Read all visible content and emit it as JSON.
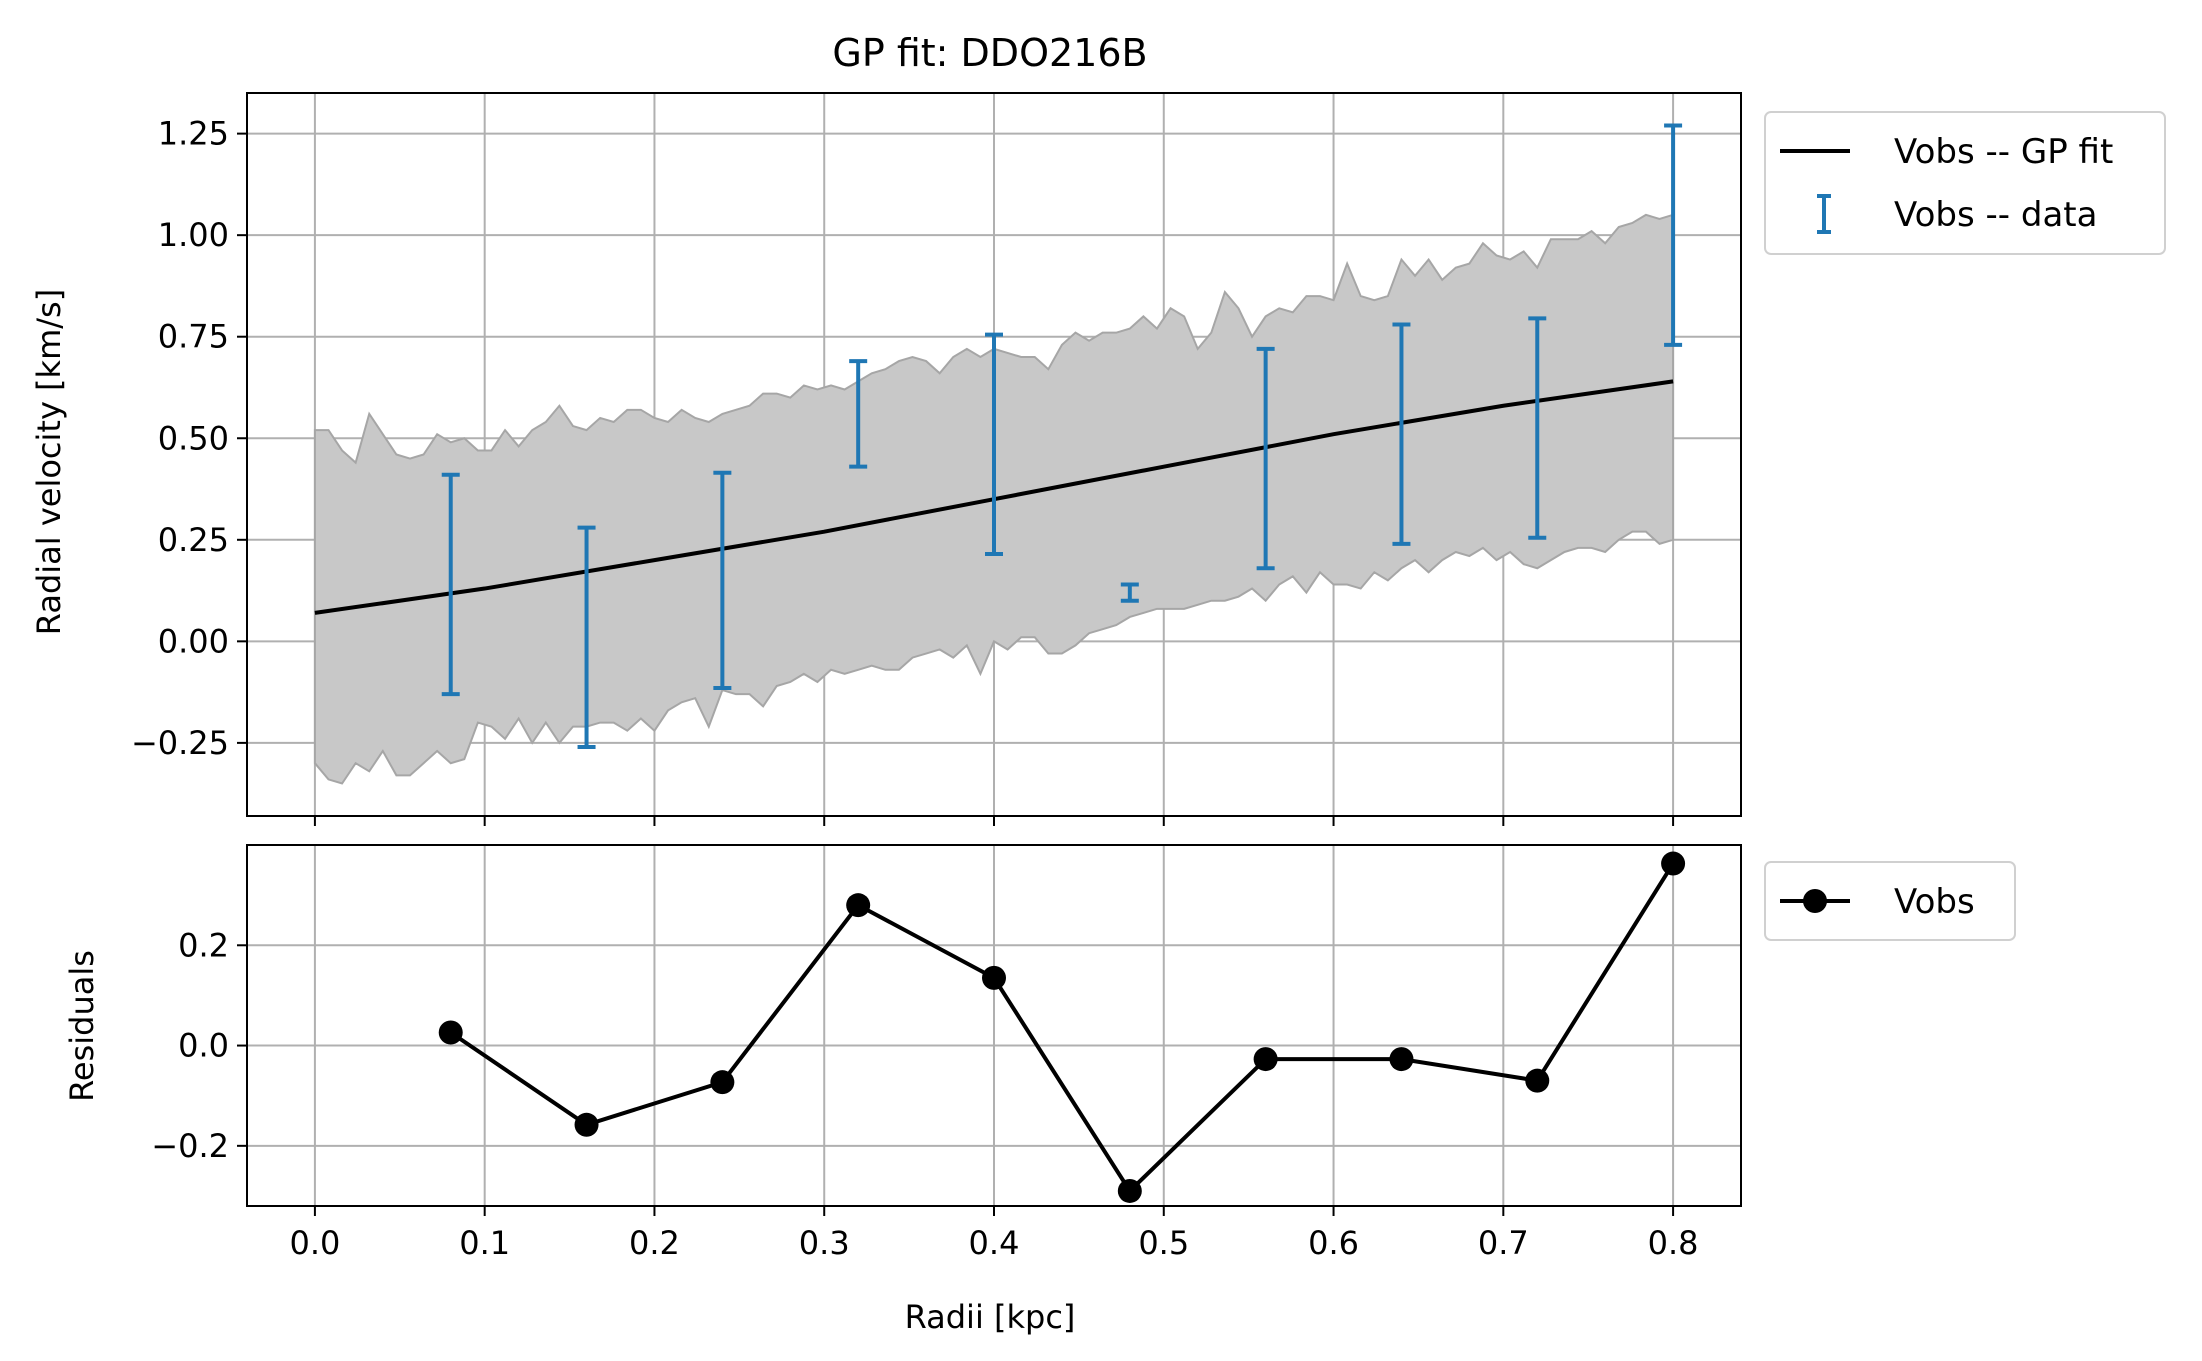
{
  "chart_data": [
    {
      "type": "line",
      "panel": "top",
      "title": "GP fit: DDO216B",
      "xlabel": "",
      "ylabel": "Radial velocity [km/s]",
      "xlim": [
        -0.04,
        0.84
      ],
      "ylim": [
        -0.43,
        1.35
      ],
      "xticks": [
        0.0,
        0.1,
        0.2,
        0.3,
        0.4,
        0.5,
        0.6,
        0.7,
        0.8
      ],
      "yticks": [
        -0.25,
        0.0,
        0.25,
        0.5,
        0.75,
        1.0,
        1.25
      ],
      "ytick_labels": [
        "−0.25",
        "0.00",
        "0.25",
        "0.50",
        "0.75",
        "1.00",
        "1.25"
      ],
      "grid": true,
      "legend": {
        "placement": "outside-top-right",
        "entries": [
          "Vobs -- GP fit",
          "Vobs -- data"
        ]
      },
      "series": [
        {
          "name": "Vobs -- GP fit",
          "kind": "line",
          "color": "#000000",
          "x": [
            0.0,
            0.1,
            0.2,
            0.3,
            0.4,
            0.5,
            0.6,
            0.7,
            0.8
          ],
          "y": [
            0.07,
            0.13,
            0.2,
            0.27,
            0.35,
            0.43,
            0.51,
            0.58,
            0.64
          ]
        },
        {
          "name": "Vobs -- data",
          "kind": "errorbar",
          "color": "#1f77b4",
          "x": [
            0.08,
            0.16,
            0.24,
            0.32,
            0.4,
            0.48,
            0.56,
            0.64,
            0.72,
            0.8
          ],
          "y": [
            0.14,
            0.01,
            0.15,
            0.56,
            0.485,
            0.12,
            0.45,
            0.51,
            0.525,
            1.0
          ],
          "yerr": [
            0.27,
            0.27,
            0.265,
            0.13,
            0.27,
            0.02,
            0.27,
            0.27,
            0.27,
            0.27
          ]
        }
      ],
      "band": {
        "color": "#c8c8c8",
        "edge_color": "#a6a6a6",
        "x": [
          0.0,
          0.008,
          0.016,
          0.024,
          0.032,
          0.04,
          0.048,
          0.056,
          0.064,
          0.072,
          0.08,
          0.088,
          0.096,
          0.104,
          0.112,
          0.12,
          0.128,
          0.136,
          0.144,
          0.152,
          0.16,
          0.168,
          0.176,
          0.184,
          0.192,
          0.2,
          0.208,
          0.216,
          0.224,
          0.232,
          0.24,
          0.248,
          0.256,
          0.264,
          0.272,
          0.28,
          0.288,
          0.296,
          0.304,
          0.312,
          0.32,
          0.328,
          0.336,
          0.344,
          0.352,
          0.36,
          0.368,
          0.376,
          0.384,
          0.392,
          0.4,
          0.408,
          0.416,
          0.424,
          0.432,
          0.44,
          0.448,
          0.456,
          0.464,
          0.472,
          0.48,
          0.488,
          0.496,
          0.504,
          0.512,
          0.52,
          0.528,
          0.536,
          0.544,
          0.552,
          0.56,
          0.568,
          0.576,
          0.584,
          0.592,
          0.6,
          0.608,
          0.616,
          0.624,
          0.632,
          0.64,
          0.648,
          0.656,
          0.664,
          0.672,
          0.68,
          0.688,
          0.696,
          0.704,
          0.712,
          0.72,
          0.728,
          0.736,
          0.744,
          0.752,
          0.76,
          0.768,
          0.776,
          0.784,
          0.792,
          0.8
        ],
        "upper": [
          0.52,
          0.52,
          0.47,
          0.44,
          0.56,
          0.51,
          0.46,
          0.45,
          0.46,
          0.51,
          0.49,
          0.5,
          0.47,
          0.47,
          0.52,
          0.48,
          0.52,
          0.54,
          0.58,
          0.53,
          0.52,
          0.55,
          0.54,
          0.57,
          0.57,
          0.55,
          0.54,
          0.57,
          0.55,
          0.54,
          0.56,
          0.57,
          0.58,
          0.61,
          0.61,
          0.6,
          0.63,
          0.62,
          0.63,
          0.62,
          0.64,
          0.66,
          0.67,
          0.69,
          0.7,
          0.69,
          0.66,
          0.7,
          0.72,
          0.7,
          0.72,
          0.71,
          0.7,
          0.7,
          0.67,
          0.73,
          0.76,
          0.74,
          0.76,
          0.76,
          0.77,
          0.8,
          0.77,
          0.82,
          0.8,
          0.72,
          0.76,
          0.86,
          0.82,
          0.75,
          0.8,
          0.82,
          0.81,
          0.85,
          0.85,
          0.84,
          0.93,
          0.85,
          0.84,
          0.85,
          0.94,
          0.9,
          0.94,
          0.89,
          0.92,
          0.93,
          0.98,
          0.95,
          0.94,
          0.96,
          0.92,
          0.99,
          0.99,
          0.99,
          1.01,
          0.98,
          1.02,
          1.03,
          1.05,
          1.04,
          1.05
        ],
        "lower": [
          -0.3,
          -0.34,
          -0.35,
          -0.3,
          -0.32,
          -0.27,
          -0.33,
          -0.33,
          -0.3,
          -0.27,
          -0.3,
          -0.29,
          -0.2,
          -0.21,
          -0.24,
          -0.19,
          -0.25,
          -0.2,
          -0.25,
          -0.21,
          -0.21,
          -0.2,
          -0.2,
          -0.22,
          -0.19,
          -0.22,
          -0.17,
          -0.15,
          -0.14,
          -0.21,
          -0.12,
          -0.13,
          -0.13,
          -0.16,
          -0.11,
          -0.1,
          -0.08,
          -0.1,
          -0.07,
          -0.08,
          -0.07,
          -0.06,
          -0.07,
          -0.07,
          -0.04,
          -0.03,
          -0.02,
          -0.04,
          -0.01,
          -0.08,
          0.0,
          -0.02,
          0.01,
          0.01,
          -0.03,
          -0.03,
          -0.01,
          0.02,
          0.03,
          0.04,
          0.06,
          0.07,
          0.08,
          0.08,
          0.08,
          0.09,
          0.1,
          0.1,
          0.11,
          0.13,
          0.1,
          0.14,
          0.16,
          0.12,
          0.17,
          0.14,
          0.14,
          0.13,
          0.17,
          0.15,
          0.18,
          0.2,
          0.17,
          0.2,
          0.22,
          0.21,
          0.23,
          0.2,
          0.22,
          0.19,
          0.18,
          0.2,
          0.22,
          0.23,
          0.23,
          0.22,
          0.25,
          0.27,
          0.27,
          0.24,
          0.25
        ]
      }
    },
    {
      "type": "line",
      "panel": "bottom",
      "title": "",
      "xlabel": "Radii [kpc]",
      "ylabel": "Residuals",
      "xlim": [
        -0.04,
        0.84
      ],
      "ylim": [
        -0.32,
        0.4
      ],
      "xticks": [
        0.0,
        0.1,
        0.2,
        0.3,
        0.4,
        0.5,
        0.6,
        0.7,
        0.8
      ],
      "xtick_labels": [
        "0.0",
        "0.1",
        "0.2",
        "0.3",
        "0.4",
        "0.5",
        "0.6",
        "0.7",
        "0.8"
      ],
      "yticks": [
        -0.2,
        0.0,
        0.2
      ],
      "ytick_labels": [
        "−0.2",
        "0.0",
        "0.2"
      ],
      "grid": true,
      "legend": {
        "placement": "outside-top-right",
        "entries": [
          "Vobs"
        ]
      },
      "series": [
        {
          "name": "Vobs",
          "kind": "line-marker",
          "color": "#000000",
          "x": [
            0.08,
            0.16,
            0.24,
            0.32,
            0.4,
            0.48,
            0.56,
            0.64,
            0.72,
            0.8
          ],
          "y": [
            0.026,
            -0.158,
            -0.073,
            0.28,
            0.135,
            -0.29,
            -0.027,
            -0.027,
            -0.07,
            0.363
          ]
        }
      ]
    }
  ]
}
